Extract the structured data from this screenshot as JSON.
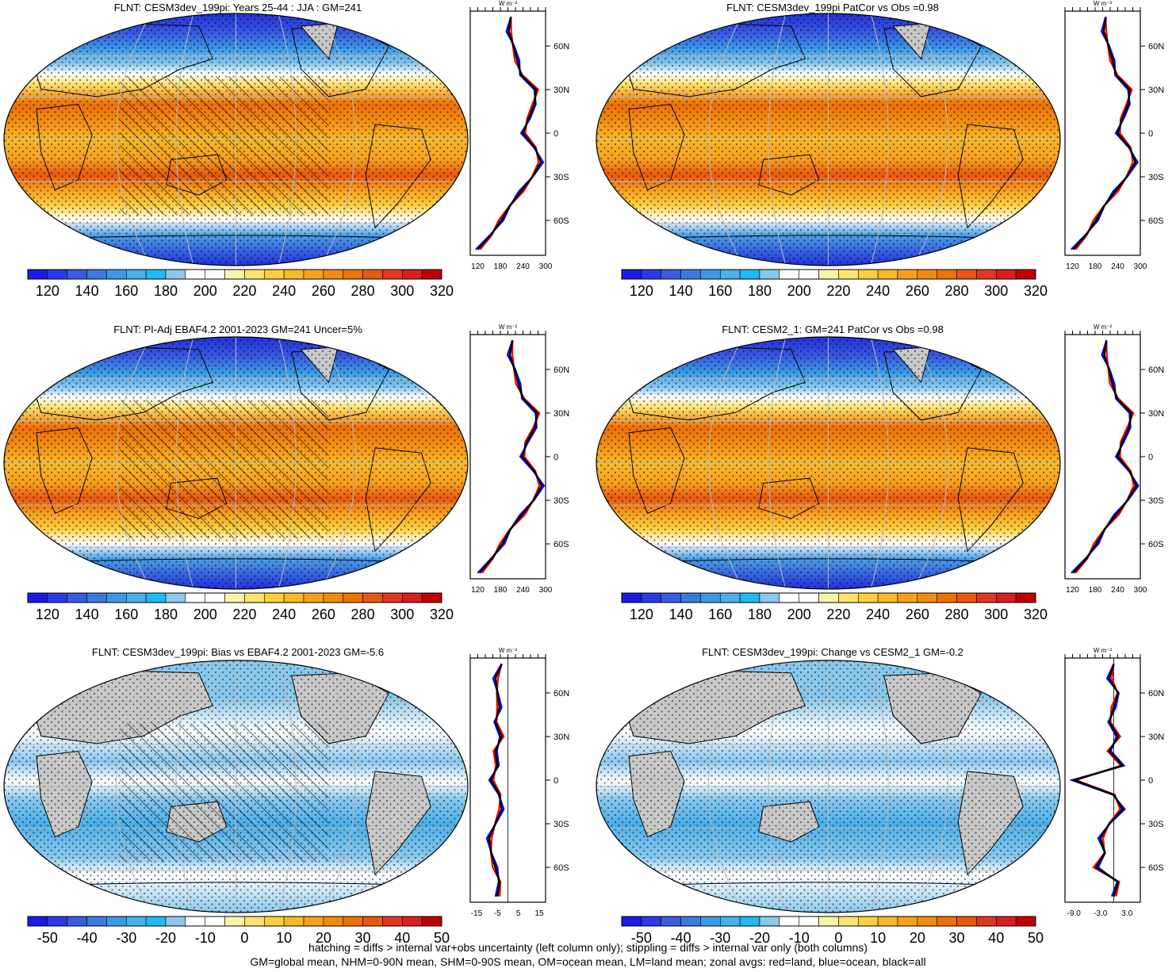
{
  "figure": {
    "footer_lines": [
      "hatching = diffs > internal var+obs uncertainty (left column only); stippling = diffs > internal var only (both columns)",
      "GM=global mean, NHM=0-90N mean, SHM=0-90S mean, OM=ocean mean, LM=land mean; zonal avgs: red=land, blue=ocean, black=all"
    ],
    "zonal_unit_label": "W m⁻²",
    "latitude_ticks": [
      "60N",
      "30N",
      "0",
      "30S",
      "60S"
    ]
  },
  "colors": {
    "land_mask": "#c8c8c8",
    "zonal_land": "#ff0000",
    "zonal_ocean": "#0000ff",
    "zonal_all": "#000000",
    "colorbar_mean": [
      "#1a1ae6",
      "#2a3ae8",
      "#3a5ce0",
      "#3a7ae0",
      "#3a9ae6",
      "#4ab0ea",
      "#20b8f0",
      "#8ac8ec",
      "#ffffff",
      "#ffffff",
      "#f8f4a8",
      "#fde370",
      "#fbd040",
      "#f8b828",
      "#f6a020",
      "#f28a10",
      "#ee7008",
      "#e85810",
      "#e03820",
      "#d81e1e",
      "#c00000"
    ],
    "colorbar_diff": [
      "#1a1ae6",
      "#2a3ae8",
      "#3a5ce0",
      "#3a7ae0",
      "#3a9ae6",
      "#4ab0ea",
      "#20b8f0",
      "#8ac8ec",
      "#ffffff",
      "#ffffff",
      "#f8f4a8",
      "#fde370",
      "#fbd040",
      "#f8b828",
      "#f6a020",
      "#f28a10",
      "#ee7008",
      "#e85810",
      "#e03820",
      "#d81e1e",
      "#c00000"
    ]
  },
  "panels": [
    {
      "id": "model-mean",
      "title": "FLNT: CESM3dev_199pi: Years 25-44 : JJA : GM=241",
      "colorbar_labels": [
        "120",
        "140",
        "160",
        "180",
        "200",
        "220",
        "240",
        "260",
        "280",
        "300",
        "320"
      ],
      "zonal_ticks": [
        "120",
        "180",
        "240",
        "300"
      ]
    },
    {
      "id": "model-patcor",
      "title": "FLNT: CESM3dev_199pi PatCor vs Obs =0.98",
      "colorbar_labels": [
        "120",
        "140",
        "160",
        "180",
        "200",
        "220",
        "240",
        "260",
        "280",
        "300",
        "320"
      ],
      "zonal_ticks": [
        "120",
        "180",
        "240",
        "300"
      ]
    },
    {
      "id": "obs-mean",
      "title": "FLNT: PI-Adj EBAF4.2 2001-2023 GM=241 Uncer=5%",
      "colorbar_labels": [
        "120",
        "140",
        "160",
        "180",
        "200",
        "220",
        "240",
        "260",
        "280",
        "300",
        "320"
      ],
      "zonal_ticks": [
        "120",
        "180",
        "240",
        "300"
      ]
    },
    {
      "id": "cesm2-mean",
      "title": "FLNT: CESM2_1: GM=241 PatCor vs Obs =0.98",
      "colorbar_labels": [
        "120",
        "140",
        "160",
        "180",
        "200",
        "220",
        "240",
        "260",
        "280",
        "300",
        "320"
      ],
      "zonal_ticks": [
        "120",
        "180",
        "240",
        "300"
      ]
    },
    {
      "id": "bias",
      "title": "FLNT: CESM3dev_199pi: Bias vs EBAF4.2 2001-2023 GM=-5.6",
      "colorbar_labels": [
        "-50",
        "-40",
        "-30",
        "-20",
        "-10",
        "0",
        "10",
        "20",
        "30",
        "40",
        "50"
      ],
      "zonal_ticks": [
        "-15",
        "-5",
        "5",
        "15"
      ]
    },
    {
      "id": "change",
      "title": "FLNT: CESM3dev_199pi: Change vs CESM2_1 GM=-0.2",
      "colorbar_labels": [
        "-50",
        "-40",
        "-30",
        "-20",
        "-10",
        "0",
        "10",
        "20",
        "30",
        "40",
        "50"
      ],
      "zonal_ticks": [
        "-9.0",
        "-3.0",
        "3.0"
      ]
    }
  ],
  "chart_data": [
    {
      "type": "heatmap",
      "title": "FLNT: CESM3dev_199pi: Years 25-44 : JJA : GM=241",
      "colorbar_range": [
        110,
        330
      ],
      "zonal_mean": {
        "xlim": [
          100,
          300
        ],
        "ticks": [
          120,
          180,
          240,
          300
        ],
        "lat": [
          80,
          70,
          60,
          50,
          40,
          30,
          20,
          10,
          0,
          -10,
          -20,
          -30,
          -40,
          -50,
          -60,
          -70,
          -80
        ],
        "all": [
          208,
          202,
          215,
          225,
          235,
          275,
          270,
          255,
          240,
          272,
          288,
          265,
          235,
          205,
          182,
          155,
          120
        ]
      }
    },
    {
      "type": "heatmap",
      "title": "FLNT: CESM3dev_199pi PatCor vs Obs =0.98",
      "colorbar_range": [
        110,
        330
      ],
      "zonal_mean": {
        "xlim": [
          100,
          300
        ],
        "ticks": [
          120,
          180,
          240,
          300
        ],
        "lat": [
          80,
          70,
          60,
          50,
          40,
          30,
          20,
          10,
          0,
          -10,
          -20,
          -30,
          -40,
          -50,
          -60,
          -70,
          -80
        ],
        "all": [
          208,
          203,
          216,
          226,
          236,
          272,
          268,
          252,
          240,
          272,
          287,
          264,
          234,
          204,
          182,
          156,
          122
        ]
      }
    },
    {
      "type": "heatmap",
      "title": "FLNT: PI-Adj EBAF4.2 2001-2023 GM=241 Uncer=5%",
      "colorbar_range": [
        110,
        330
      ],
      "zonal_mean": {
        "xlim": [
          100,
          300
        ],
        "ticks": [
          120,
          180,
          240,
          300
        ],
        "lat": [
          80,
          70,
          60,
          50,
          40,
          30,
          20,
          10,
          0,
          -10,
          -20,
          -30,
          -40,
          -50,
          -60,
          -70,
          -80
        ],
        "all": [
          212,
          205,
          218,
          228,
          240,
          278,
          272,
          250,
          238,
          270,
          290,
          268,
          238,
          206,
          185,
          158,
          125
        ]
      }
    },
    {
      "type": "heatmap",
      "title": "FLNT: CESM2_1: GM=241 PatCor vs Obs =0.98",
      "colorbar_range": [
        110,
        330
      ],
      "zonal_mean": {
        "xlim": [
          100,
          300
        ],
        "ticks": [
          120,
          180,
          240,
          300
        ],
        "lat": [
          80,
          70,
          60,
          50,
          40,
          30,
          20,
          10,
          0,
          -10,
          -20,
          -30,
          -40,
          -50,
          -60,
          -70,
          -80
        ],
        "all": [
          210,
          204,
          217,
          226,
          238,
          276,
          270,
          252,
          240,
          272,
          289,
          266,
          236,
          205,
          183,
          157,
          122
        ]
      }
    },
    {
      "type": "heatmap",
      "title": "FLNT: CESM3dev_199pi: Bias vs EBAF4.2 2001-2023 GM=-5.6",
      "colorbar_range": [
        -55,
        55
      ],
      "zonal_mean": {
        "xlim": [
          -18,
          18
        ],
        "ticks": [
          -15,
          -5,
          5,
          15
        ],
        "lat": [
          80,
          70,
          60,
          50,
          40,
          30,
          20,
          10,
          0,
          -10,
          -20,
          -30,
          -40,
          -50,
          -60,
          -70,
          -80
        ],
        "all": [
          -3,
          -6,
          -5,
          -4,
          -6,
          -3,
          -6,
          -5,
          -8,
          -4,
          -3,
          -6,
          -9,
          -8,
          -6,
          -4,
          -5
        ]
      }
    },
    {
      "type": "heatmap",
      "title": "FLNT: CESM3dev_199pi: Change vs CESM2_1 GM=-0.2",
      "colorbar_range": [
        -11,
        11
      ],
      "zonal_mean": {
        "xlim": [
          -11,
          6
        ],
        "ticks": [
          -9.0,
          -3.0,
          3.0
        ],
        "lat": [
          80,
          70,
          60,
          50,
          40,
          30,
          20,
          10,
          0,
          -10,
          -20,
          -30,
          -40,
          -50,
          -60,
          -70,
          -80
        ],
        "all": [
          0,
          -1,
          1,
          0,
          -1,
          1,
          -1,
          2,
          -9,
          0,
          2,
          -1,
          -3,
          -2,
          -4,
          1,
          0
        ]
      }
    }
  ]
}
